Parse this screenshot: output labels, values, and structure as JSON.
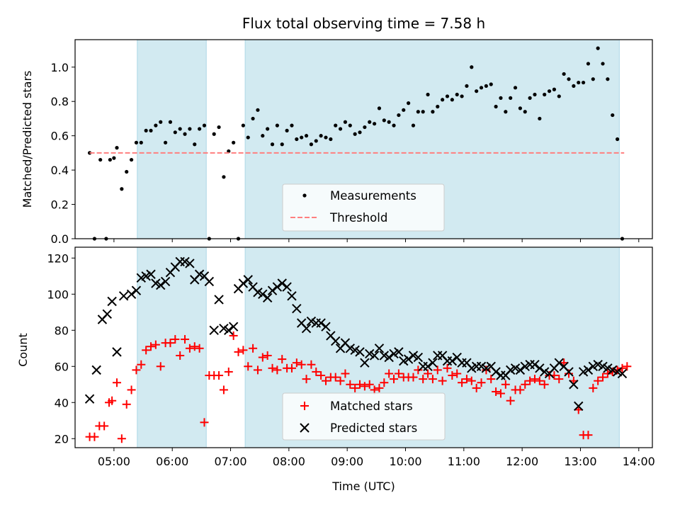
{
  "chart_data": [
    {
      "type": "scatter",
      "title": "Flux total observing time = 7.58 h",
      "xlabel": "",
      "ylabel": "Matched/Predicted stars",
      "ylim": [
        0,
        1.16
      ],
      "xlim": [
        "04:20",
        "14:14"
      ],
      "yticks": [
        "0.0",
        "0.2",
        "0.4",
        "0.6",
        "0.8",
        "1.0"
      ],
      "grid": false,
      "legend_position": "lower center",
      "colors": {
        "measurements": "#000000",
        "threshold": "#ff7f7f",
        "shade": "#add8e6"
      },
      "shaded_intervals": [
        [
          "05:24",
          "06:35"
        ],
        [
          "07:15",
          "13:40"
        ]
      ],
      "series": [
        {
          "name": "Measurements",
          "marker": "dot",
          "x": [
            "04:35",
            "04:40",
            "04:46",
            "04:52",
            "04:56",
            "05:00",
            "05:03",
            "05:08",
            "05:13",
            "05:18",
            "05:23",
            "05:28",
            "05:33",
            "05:38",
            "05:43",
            "05:48",
            "05:53",
            "05:58",
            "06:03",
            "06:08",
            "06:13",
            "06:18",
            "06:23",
            "06:28",
            "06:33",
            "06:38",
            "06:43",
            "06:48",
            "06:53",
            "06:58",
            "07:03",
            "07:08",
            "07:13",
            "07:18",
            "07:23",
            "07:28",
            "07:33",
            "07:38",
            "07:43",
            "07:48",
            "07:53",
            "07:58",
            "08:03",
            "08:08",
            "08:13",
            "08:18",
            "08:23",
            "08:28",
            "08:33",
            "08:38",
            "08:43",
            "08:48",
            "08:53",
            "08:58",
            "09:03",
            "09:08",
            "09:13",
            "09:18",
            "09:23",
            "09:28",
            "09:33",
            "09:38",
            "09:43",
            "09:48",
            "09:53",
            "09:58",
            "10:03",
            "10:08",
            "10:13",
            "10:18",
            "10:23",
            "10:28",
            "10:33",
            "10:38",
            "10:43",
            "10:48",
            "10:53",
            "10:58",
            "11:03",
            "11:08",
            "11:13",
            "11:18",
            "11:23",
            "11:28",
            "11:33",
            "11:38",
            "11:43",
            "11:48",
            "11:53",
            "11:58",
            "12:03",
            "12:08",
            "12:13",
            "12:18",
            "12:23",
            "12:28",
            "12:33",
            "12:38",
            "12:43",
            "12:48",
            "12:53",
            "12:58",
            "13:03",
            "13:08",
            "13:13",
            "13:18",
            "13:23",
            "13:28",
            "13:33",
            "13:38",
            "13:43"
          ],
          "y": [
            0.5,
            0.0,
            0.46,
            0.0,
            0.46,
            0.47,
            0.53,
            0.29,
            0.39,
            0.46,
            0.56,
            0.56,
            0.63,
            0.63,
            0.66,
            0.68,
            0.56,
            0.68,
            0.62,
            0.64,
            0.61,
            0.64,
            0.55,
            0.64,
            0.66,
            0.0,
            0.61,
            0.65,
            0.36,
            0.51,
            0.56,
            0.0,
            0.66,
            0.59,
            0.7,
            0.75,
            0.6,
            0.64,
            0.55,
            0.66,
            0.55,
            0.63,
            0.66,
            0.58,
            0.59,
            0.6,
            0.55,
            0.57,
            0.6,
            0.59,
            0.58,
            0.66,
            0.64,
            0.68,
            0.66,
            0.61,
            0.62,
            0.65,
            0.68,
            0.67,
            0.76,
            0.69,
            0.68,
            0.66,
            0.72,
            0.75,
            0.79,
            0.66,
            0.74,
            0.74,
            0.84,
            0.74,
            0.77,
            0.81,
            0.83,
            0.81,
            0.84,
            0.83,
            0.89,
            1.0,
            0.86,
            0.88,
            0.89,
            0.9,
            0.77,
            0.82,
            0.74,
            0.82,
            0.88,
            0.76,
            0.74,
            0.82,
            0.84,
            0.7,
            0.84,
            0.86,
            0.87,
            0.83,
            0.96,
            0.93,
            0.89,
            0.91,
            0.91,
            1.02,
            0.93,
            1.11,
            1.02,
            0.93,
            0.72,
            0.58,
            0.0
          ]
        },
        {
          "name": "Threshold",
          "style": "dashed",
          "x": [
            "04:35",
            "13:45"
          ],
          "y": [
            0.5,
            0.5
          ]
        }
      ]
    },
    {
      "type": "scatter",
      "title": "",
      "xlabel": "Time (UTC)",
      "ylabel": "Count",
      "ylim": [
        15,
        126
      ],
      "xlim": [
        "04:20",
        "14:14"
      ],
      "yticks": [
        "20",
        "40",
        "60",
        "80",
        "100",
        "120"
      ],
      "xticks": [
        "05:00",
        "06:00",
        "07:00",
        "08:00",
        "09:00",
        "10:00",
        "11:00",
        "12:00",
        "13:00",
        "14:00"
      ],
      "grid": false,
      "legend_position": "lower center",
      "colors": {
        "matched": "#ff0000",
        "predicted": "#000000",
        "shade": "#add8e6"
      },
      "shaded_intervals": [
        [
          "05:24",
          "06:35"
        ],
        [
          "07:15",
          "13:40"
        ]
      ],
      "series": [
        {
          "name": "Matched stars",
          "marker": "plus",
          "x": [
            "04:35",
            "04:40",
            "04:45",
            "04:50",
            "04:55",
            "04:58",
            "05:03",
            "05:08",
            "05:13",
            "05:18",
            "05:23",
            "05:28",
            "05:33",
            "05:38",
            "05:43",
            "05:48",
            "05:53",
            "05:58",
            "06:03",
            "06:08",
            "06:13",
            "06:18",
            "06:23",
            "06:28",
            "06:33",
            "06:38",
            "06:43",
            "06:48",
            "06:53",
            "06:58",
            "07:03",
            "07:08",
            "07:13",
            "07:18",
            "07:23",
            "07:28",
            "07:33",
            "07:38",
            "07:43",
            "07:48",
            "07:53",
            "07:58",
            "08:03",
            "08:08",
            "08:13",
            "08:18",
            "08:23",
            "08:28",
            "08:33",
            "08:38",
            "08:43",
            "08:48",
            "08:53",
            "08:58",
            "09:03",
            "09:08",
            "09:13",
            "09:18",
            "09:23",
            "09:28",
            "09:33",
            "09:38",
            "09:43",
            "09:48",
            "09:53",
            "09:58",
            "10:03",
            "10:08",
            "10:13",
            "10:18",
            "10:23",
            "10:28",
            "10:33",
            "10:38",
            "10:43",
            "10:48",
            "10:53",
            "10:58",
            "11:03",
            "11:08",
            "11:13",
            "11:18",
            "11:23",
            "11:28",
            "11:33",
            "11:38",
            "11:43",
            "11:48",
            "11:53",
            "11:58",
            "12:03",
            "12:08",
            "12:13",
            "12:18",
            "12:23",
            "12:28",
            "12:33",
            "12:38",
            "12:43",
            "12:48",
            "12:53",
            "12:58",
            "13:03",
            "13:08",
            "13:13",
            "13:18",
            "13:23",
            "13:28",
            "13:33",
            "13:38",
            "13:43",
            "13:48"
          ],
          "y": [
            21,
            21,
            27,
            27,
            40,
            41,
            51,
            20,
            39,
            47,
            58,
            61,
            69,
            71,
            72,
            60,
            73,
            73,
            75,
            66,
            75,
            70,
            71,
            70,
            29,
            55,
            55,
            55,
            47,
            57,
            77,
            68,
            69,
            60,
            70,
            58,
            65,
            66,
            59,
            58,
            64,
            59,
            59,
            62,
            61,
            53,
            61,
            57,
            55,
            52,
            54,
            54,
            52,
            56,
            50,
            48,
            50,
            49,
            50,
            47,
            48,
            51,
            56,
            53,
            56,
            54,
            54,
            54,
            58,
            53,
            56,
            53,
            58,
            52,
            59,
            55,
            56,
            51,
            53,
            52,
            48,
            51,
            58,
            53,
            46,
            45,
            50,
            41,
            47,
            47,
            50,
            52,
            53,
            52,
            50,
            55,
            55,
            53,
            62,
            56,
            52,
            36,
            22,
            22,
            48,
            52,
            54,
            56,
            57,
            58,
            59,
            60
          ]
        },
        {
          "name": "Predicted stars",
          "marker": "x",
          "x": [
            "04:35",
            "04:42",
            "04:48",
            "04:53",
            "04:58",
            "05:03",
            "05:10",
            "05:18",
            "05:23",
            "05:28",
            "05:33",
            "05:38",
            "05:43",
            "05:48",
            "05:53",
            "05:58",
            "06:03",
            "06:08",
            "06:13",
            "06:18",
            "06:23",
            "06:28",
            "06:33",
            "06:38",
            "06:43",
            "06:48",
            "06:53",
            "06:58",
            "07:03",
            "07:08",
            "07:13",
            "07:18",
            "07:23",
            "07:28",
            "07:33",
            "07:38",
            "07:43",
            "07:48",
            "07:53",
            "07:58",
            "08:03",
            "08:08",
            "08:13",
            "08:18",
            "08:23",
            "08:28",
            "08:33",
            "08:38",
            "08:43",
            "08:48",
            "08:53",
            "08:58",
            "09:03",
            "09:08",
            "09:13",
            "09:18",
            "09:23",
            "09:28",
            "09:33",
            "09:38",
            "09:43",
            "09:48",
            "09:53",
            "09:58",
            "10:03",
            "10:08",
            "10:13",
            "10:18",
            "10:23",
            "10:28",
            "10:33",
            "10:38",
            "10:43",
            "10:48",
            "10:53",
            "10:58",
            "11:03",
            "11:08",
            "11:13",
            "11:18",
            "11:23",
            "11:28",
            "11:33",
            "11:38",
            "11:43",
            "11:48",
            "11:53",
            "11:58",
            "12:03",
            "12:08",
            "12:13",
            "12:18",
            "12:23",
            "12:28",
            "12:33",
            "12:38",
            "12:43",
            "12:48",
            "12:53",
            "12:58",
            "13:03",
            "13:08",
            "13:13",
            "13:18",
            "13:23",
            "13:28",
            "13:33",
            "13:38",
            "13:43"
          ],
          "y": [
            42,
            58,
            86,
            89,
            96,
            68,
            99,
            100,
            102,
            109,
            110,
            111,
            106,
            105,
            107,
            112,
            115,
            118,
            118,
            117,
            108,
            111,
            110,
            107,
            80,
            97,
            81,
            80,
            82,
            103,
            106,
            108,
            104,
            101,
            100,
            98,
            102,
            104,
            106,
            104,
            99,
            92,
            84,
            81,
            85,
            84,
            84,
            82,
            77,
            74,
            70,
            73,
            70,
            69,
            68,
            62,
            67,
            66,
            70,
            66,
            65,
            67,
            68,
            63,
            64,
            66,
            65,
            60,
            60,
            62,
            66,
            66,
            63,
            63,
            65,
            62,
            62,
            59,
            60,
            60,
            59,
            60,
            57,
            55,
            55,
            58,
            59,
            58,
            60,
            61,
            61,
            59,
            57,
            56,
            59,
            62,
            60,
            57,
            50,
            38,
            57,
            58,
            60,
            61,
            60,
            59,
            58,
            57,
            56
          ]
        }
      ]
    }
  ]
}
